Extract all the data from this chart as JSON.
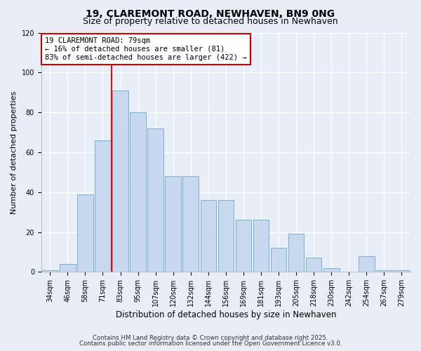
{
  "title1": "19, CLAREMONT ROAD, NEWHAVEN, BN9 0NG",
  "title2": "Size of property relative to detached houses in Newhaven",
  "xlabel": "Distribution of detached houses by size in Newhaven",
  "ylabel": "Number of detached properties",
  "bin_labels": [
    "34sqm",
    "46sqm",
    "58sqm",
    "71sqm",
    "83sqm",
    "95sqm",
    "107sqm",
    "120sqm",
    "132sqm",
    "144sqm",
    "156sqm",
    "169sqm",
    "181sqm",
    "193sqm",
    "205sqm",
    "218sqm",
    "230sqm",
    "242sqm",
    "254sqm",
    "267sqm",
    "279sqm"
  ],
  "bar_heights": [
    1,
    4,
    39,
    66,
    91,
    80,
    72,
    48,
    48,
    36,
    36,
    26,
    26,
    12,
    19,
    7,
    2,
    0,
    8,
    1,
    1
  ],
  "bar_color": "#c8d8ee",
  "bar_edgecolor": "#7aafd4",
  "vline_x": 4,
  "vline_color": "red",
  "ylim": [
    0,
    120
  ],
  "annotation_text": "19 CLAREMONT ROAD: 79sqm\n← 16% of detached houses are smaller (81)\n83% of semi-detached houses are larger (422) →",
  "annotation_box_color": "white",
  "annotation_box_edgecolor": "#cc0000",
  "background_color": "#e8eef8",
  "grid_color": "white",
  "footnote1": "Contains HM Land Registry data © Crown copyright and database right 2025.",
  "footnote2": "Contains public sector information licensed under the Open Government Licence v3.0.",
  "title1_fontsize": 10,
  "title2_fontsize": 9,
  "xlabel_fontsize": 8.5,
  "ylabel_fontsize": 8,
  "tick_fontsize": 7,
  "annotation_fontsize": 7.5
}
